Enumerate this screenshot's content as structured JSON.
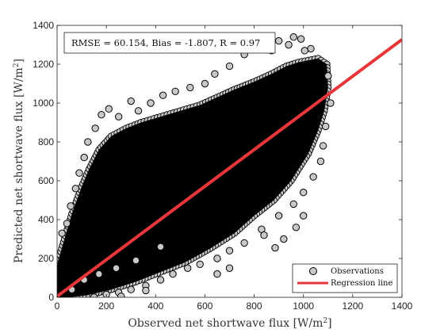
{
  "chart_data": {
    "type": "scatter",
    "title": "",
    "xlabel": "Observed net shortwave flux [W/m",
    "ylabel": "Predicted net shortwave flux [W/m",
    "unit_superscript": "2",
    "unit_close": "]",
    "xlim": [
      0,
      1400
    ],
    "ylim": [
      0,
      1400
    ],
    "xticks": [
      0,
      200,
      400,
      600,
      800,
      1000,
      1200,
      1400
    ],
    "yticks": [
      0,
      200,
      400,
      600,
      800,
      1000,
      1200,
      1400
    ],
    "grid": false,
    "legend_position": "bottom-right",
    "stats_box": "RMSE = 60.154, Bias = -1.807, R = 0.97",
    "series": [
      {
        "name": "Observations",
        "kind": "points",
        "marker": "circle",
        "fill": "#c8c8c8",
        "edge": "#000000",
        "cloud_polygon": [
          [
            0,
            0
          ],
          [
            0,
            170
          ],
          [
            30,
            300
          ],
          [
            60,
            430
          ],
          [
            100,
            570
          ],
          [
            130,
            660
          ],
          [
            170,
            760
          ],
          [
            220,
            830
          ],
          [
            280,
            870
          ],
          [
            340,
            900
          ],
          [
            420,
            930
          ],
          [
            500,
            960
          ],
          [
            580,
            990
          ],
          [
            650,
            1030
          ],
          [
            720,
            1070
          ],
          [
            800,
            1110
          ],
          [
            870,
            1150
          ],
          [
            930,
            1190
          ],
          [
            980,
            1210
          ],
          [
            1060,
            1230
          ],
          [
            1095,
            1200
          ],
          [
            1100,
            1080
          ],
          [
            1085,
            960
          ],
          [
            1060,
            860
          ],
          [
            1020,
            740
          ],
          [
            950,
            600
          ],
          [
            880,
            500
          ],
          [
            800,
            420
          ],
          [
            720,
            330
          ],
          [
            620,
            250
          ],
          [
            520,
            180
          ],
          [
            420,
            130
          ],
          [
            320,
            80
          ],
          [
            220,
            40
          ],
          [
            120,
            10
          ],
          [
            50,
            0
          ]
        ],
        "outliers": [
          [
            20,
            330
          ],
          [
            40,
            380
          ],
          [
            55,
            470
          ],
          [
            75,
            560
          ],
          [
            90,
            640
          ],
          [
            110,
            720
          ],
          [
            125,
            800
          ],
          [
            155,
            870
          ],
          [
            180,
            940
          ],
          [
            210,
            970
          ],
          [
            250,
            930
          ],
          [
            300,
            1010
          ],
          [
            330,
            960
          ],
          [
            380,
            1000
          ],
          [
            430,
            1040
          ],
          [
            480,
            1060
          ],
          [
            540,
            1080
          ],
          [
            600,
            1100
          ],
          [
            640,
            1150
          ],
          [
            700,
            1190
          ],
          [
            760,
            1250
          ],
          [
            830,
            1290
          ],
          [
            900,
            1320
          ],
          [
            960,
            1340
          ],
          [
            1030,
            1280
          ],
          [
            990,
            1330
          ],
          [
            940,
            1300
          ],
          [
            870,
            1270
          ],
          [
            1005,
            1270
          ],
          [
            150,
            0
          ],
          [
            200,
            15
          ],
          [
            250,
            25
          ],
          [
            300,
            40
          ],
          [
            360,
            60
          ],
          [
            420,
            90
          ],
          [
            470,
            120
          ],
          [
            530,
            150
          ],
          [
            580,
            170
          ],
          [
            650,
            200
          ],
          [
            700,
            240
          ],
          [
            760,
            280
          ],
          [
            830,
            350
          ],
          [
            900,
            420
          ],
          [
            960,
            480
          ],
          [
            1000,
            540
          ],
          [
            1040,
            620
          ],
          [
            1070,
            700
          ],
          [
            1080,
            780
          ],
          [
            1000,
            420
          ],
          [
            970,
            360
          ],
          [
            920,
            300
          ],
          [
            885,
            255
          ],
          [
            840,
            320
          ],
          [
            1100,
            1140
          ],
          [
            1110,
            1000
          ],
          [
            1090,
            880
          ],
          [
            60,
            40
          ],
          [
            110,
            90
          ],
          [
            170,
            120
          ],
          [
            240,
            150
          ],
          [
            320,
            190
          ],
          [
            420,
            260
          ],
          [
            360,
            35
          ],
          [
            260,
            5
          ],
          [
            650,
            120
          ],
          [
            700,
            150
          ]
        ]
      },
      {
        "name": "Regression line",
        "kind": "line",
        "color": "#e8363b",
        "x": [
          0,
          1400
        ],
        "y": [
          5,
          1327
        ]
      }
    ]
  }
}
